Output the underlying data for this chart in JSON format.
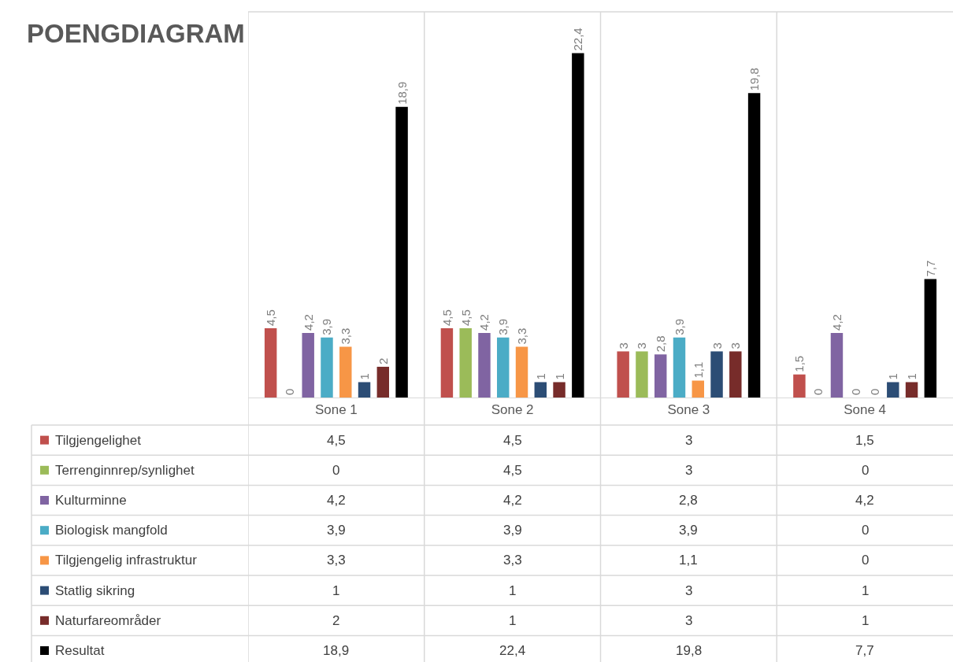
{
  "chart_data": {
    "type": "bar",
    "title": "POENGDIAGRAM",
    "legend": "bottom left",
    "categories": [
      "Sone 1",
      "Sone 2",
      "Sone 3",
      "Sone 4"
    ],
    "series": [
      {
        "name": "Tilgjengelighet",
        "color": "#c0504d",
        "values": [
          4.5,
          4.5,
          3,
          1.5
        ],
        "value_labels": [
          "4,5",
          "4,5",
          "3",
          "1,5"
        ]
      },
      {
        "name": "Terrenginnrep/synlighet",
        "color": "#9bbb59",
        "values": [
          0,
          4.5,
          3,
          0
        ],
        "value_labels": [
          "0",
          "4,5",
          "3",
          "0"
        ]
      },
      {
        "name": "Kulturminne",
        "color": "#8064a2",
        "values": [
          4.2,
          4.2,
          2.8,
          4.2
        ],
        "value_labels": [
          "4,2",
          "4,2",
          "2,8",
          "4,2"
        ]
      },
      {
        "name": "Biologisk mangfold",
        "color": "#4bacc6",
        "values": [
          3.9,
          3.9,
          3.9,
          0
        ],
        "value_labels": [
          "3,9",
          "3,9",
          "3,9",
          "0"
        ]
      },
      {
        "name": "Tilgjengelig infrastruktur",
        "color": "#f79646",
        "values": [
          3.3,
          3.3,
          1.1,
          0
        ],
        "value_labels": [
          "3,3",
          "3,3",
          "1,1",
          "0"
        ]
      },
      {
        "name": "Statlig sikring",
        "color": "#2c4d75",
        "values": [
          1,
          1,
          3,
          1
        ],
        "value_labels": [
          "1",
          "1",
          "3",
          "1"
        ]
      },
      {
        "name": "Naturfareområder",
        "color": "#772c2a",
        "values": [
          2,
          1,
          3,
          1
        ],
        "value_labels": [
          "2",
          "1",
          "3",
          "1"
        ]
      },
      {
        "name": "Resultat",
        "color": "#000000",
        "values": [
          18.9,
          22.4,
          19.8,
          7.7
        ],
        "value_labels": [
          "18,9",
          "22,4",
          "19,8",
          "7,7"
        ]
      }
    ]
  }
}
